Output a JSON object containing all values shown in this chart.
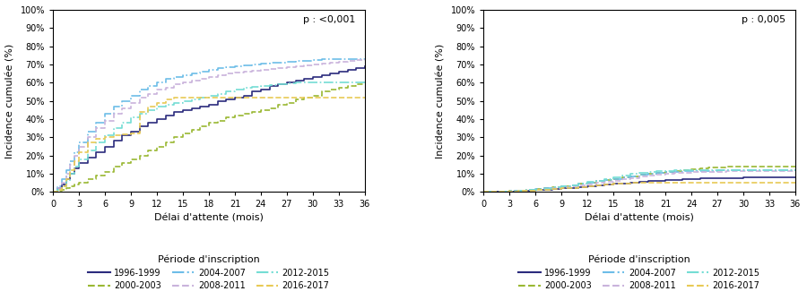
{
  "left_title_text": "p : <0,001",
  "right_title_text": "p : 0,005",
  "xlabel": "Délai d'attente (mois)",
  "ylabel": "Incidence cumulée (%)",
  "legend_title": "Période d'inscription",
  "yticks": [
    0,
    10,
    20,
    30,
    40,
    50,
    60,
    70,
    80,
    90,
    100
  ],
  "xticks": [
    0,
    3,
    6,
    9,
    12,
    15,
    18,
    21,
    24,
    27,
    30,
    33,
    36
  ],
  "series": [
    {
      "label": "1996-1999",
      "color": "#2b2b7d",
      "linestyle": "solid",
      "linewidth": 1.2,
      "left_x": [
        0,
        0.5,
        1,
        1.5,
        2,
        2.5,
        3,
        4,
        5,
        6,
        7,
        8,
        9,
        10,
        11,
        12,
        13,
        14,
        15,
        16,
        17,
        18,
        19,
        20,
        21,
        22,
        23,
        24,
        25,
        26,
        27,
        28,
        29,
        30,
        31,
        32,
        33,
        34,
        35,
        36
      ],
      "left_y": [
        0,
        2,
        4,
        7,
        10,
        13,
        16,
        19,
        22,
        25,
        28,
        31,
        33,
        36,
        38,
        40,
        42,
        44,
        45,
        46,
        47,
        48,
        50,
        51,
        52,
        53,
        55,
        56,
        58,
        59,
        60,
        61,
        62,
        63,
        64,
        65,
        66,
        67,
        68,
        69
      ],
      "right_x": [
        0,
        1,
        2,
        3,
        4,
        5,
        6,
        7,
        8,
        9,
        10,
        11,
        12,
        13,
        14,
        15,
        16,
        17,
        18,
        19,
        20,
        21,
        22,
        23,
        24,
        25,
        26,
        27,
        28,
        29,
        30,
        31,
        32,
        33,
        34,
        35,
        36
      ],
      "right_y": [
        0,
        0.1,
        0.2,
        0.3,
        0.5,
        0.7,
        1.0,
        1.3,
        1.6,
        2.0,
        2.4,
        2.8,
        3.2,
        3.6,
        4.0,
        4.4,
        4.8,
        5.2,
        5.6,
        6.0,
        6.3,
        6.6,
        6.8,
        7.0,
        7.2,
        7.4,
        7.5,
        7.6,
        7.7,
        7.8,
        7.9,
        8.0,
        8.0,
        8.0,
        8.0,
        8.0,
        8.0
      ]
    },
    {
      "label": "2000-2003",
      "color": "#9ab832",
      "linestyle": "dashed",
      "linewidth": 1.2,
      "left_x": [
        0,
        0.5,
        1,
        1.5,
        2,
        2.5,
        3,
        4,
        5,
        6,
        7,
        8,
        9,
        10,
        11,
        12,
        13,
        14,
        15,
        16,
        17,
        18,
        19,
        20,
        21,
        22,
        23,
        24,
        25,
        26,
        27,
        28,
        29,
        30,
        31,
        32,
        33,
        34,
        35,
        36
      ],
      "left_y": [
        0,
        0.5,
        1,
        2,
        3,
        4,
        5,
        7,
        9,
        11,
        14,
        16,
        18,
        20,
        23,
        25,
        27,
        30,
        32,
        34,
        36,
        38,
        39,
        41,
        42,
        43,
        44,
        45,
        46,
        48,
        49,
        51,
        52,
        53,
        55,
        56,
        57,
        58,
        59,
        59
      ],
      "right_x": [
        0,
        1,
        2,
        3,
        4,
        5,
        6,
        7,
        8,
        9,
        10,
        11,
        12,
        13,
        14,
        15,
        16,
        17,
        18,
        19,
        20,
        21,
        22,
        23,
        24,
        25,
        26,
        27,
        28,
        29,
        30,
        31,
        32,
        33,
        34,
        35,
        36
      ],
      "right_y": [
        0,
        0.1,
        0.3,
        0.5,
        0.8,
        1.2,
        1.6,
        2.1,
        2.6,
        3.2,
        3.8,
        4.5,
        5.2,
        5.9,
        6.6,
        7.3,
        8.0,
        8.7,
        9.4,
        10.0,
        10.5,
        11.0,
        11.5,
        12.0,
        12.5,
        13.0,
        13.3,
        13.6,
        13.8,
        14.0,
        14.0,
        14.0,
        14.0,
        14.0,
        14.0,
        14.0,
        14.0
      ]
    },
    {
      "label": "2004-2007",
      "color": "#6dbde8",
      "linestyle": "dashdot",
      "linewidth": 1.2,
      "left_x": [
        0,
        0.5,
        1,
        1.5,
        2,
        2.5,
        3,
        4,
        5,
        6,
        7,
        8,
        9,
        10,
        11,
        12,
        13,
        14,
        15,
        16,
        17,
        18,
        19,
        20,
        21,
        22,
        23,
        24,
        25,
        26,
        27,
        28,
        29,
        30,
        31,
        32,
        33,
        34,
        35,
        36
      ],
      "left_y": [
        0,
        3,
        7,
        12,
        17,
        22,
        27,
        33,
        38,
        43,
        47,
        50,
        53,
        56,
        58,
        60,
        62,
        63,
        64,
        65,
        66,
        67,
        68,
        68.5,
        69,
        69.5,
        70,
        70.5,
        71,
        71,
        71.5,
        72,
        72,
        72.5,
        73,
        73,
        73,
        73,
        73,
        73
      ],
      "right_x": [
        0,
        1,
        2,
        3,
        4,
        5,
        6,
        7,
        8,
        9,
        10,
        11,
        12,
        13,
        14,
        15,
        16,
        17,
        18,
        19,
        20,
        21,
        22,
        23,
        24,
        25,
        26,
        27,
        28,
        29,
        30,
        31,
        32,
        33,
        34,
        35,
        36
      ],
      "right_y": [
        0,
        0.1,
        0.3,
        0.5,
        0.8,
        1.2,
        1.6,
        2.1,
        2.6,
        3.2,
        3.8,
        4.5,
        5.2,
        5.9,
        6.6,
        7.3,
        8.0,
        8.7,
        9.4,
        10.0,
        10.5,
        11.0,
        11.2,
        11.4,
        11.5,
        11.6,
        11.7,
        11.8,
        11.9,
        12.0,
        12.0,
        12.0,
        12.0,
        12.0,
        12.0,
        12.0,
        12.0
      ]
    },
    {
      "label": "2008-2011",
      "color": "#c9b3dc",
      "linestyle": "dashed",
      "linewidth": 1.2,
      "left_x": [
        0,
        0.5,
        1,
        1.5,
        2,
        2.5,
        3,
        4,
        5,
        6,
        7,
        8,
        9,
        10,
        11,
        12,
        13,
        14,
        15,
        16,
        17,
        18,
        19,
        20,
        21,
        22,
        23,
        24,
        25,
        26,
        27,
        28,
        29,
        30,
        31,
        32,
        33,
        34,
        35,
        36
      ],
      "left_y": [
        0,
        2,
        5,
        10,
        15,
        20,
        25,
        30,
        35,
        39,
        43,
        46,
        49,
        52,
        54,
        56,
        57,
        59,
        60,
        61,
        62,
        63,
        64,
        65,
        65.5,
        66,
        66.5,
        67,
        67.5,
        68,
        68.5,
        69,
        69.5,
        70,
        70.5,
        71,
        71.5,
        72,
        72.5,
        73
      ],
      "right_x": [
        0,
        1,
        2,
        3,
        4,
        5,
        6,
        7,
        8,
        9,
        10,
        11,
        12,
        13,
        14,
        15,
        16,
        17,
        18,
        19,
        20,
        21,
        22,
        23,
        24,
        25,
        26,
        27,
        28,
        29,
        30,
        31,
        32,
        33,
        34,
        35,
        36
      ],
      "right_y": [
        0,
        0.1,
        0.2,
        0.4,
        0.6,
        0.9,
        1.2,
        1.6,
        2.0,
        2.5,
        3.0,
        3.6,
        4.2,
        4.9,
        5.6,
        6.3,
        7.0,
        7.7,
        8.4,
        9.0,
        9.5,
        10.0,
        10.3,
        10.6,
        10.8,
        11.0,
        11.1,
        11.2,
        11.3,
        11.4,
        11.5,
        11.5,
        11.5,
        11.5,
        11.5,
        11.5,
        11.5
      ]
    },
    {
      "label": "2012-2015",
      "color": "#74ddd4",
      "linestyle": "dashdot",
      "linewidth": 1.2,
      "left_x": [
        0,
        0.5,
        1,
        1.5,
        2,
        2.5,
        3,
        4,
        5,
        6,
        7,
        8,
        9,
        10,
        11,
        12,
        13,
        14,
        15,
        16,
        17,
        18,
        19,
        20,
        21,
        22,
        23,
        24,
        25,
        26,
        27,
        28,
        29,
        30,
        31,
        32,
        33,
        34,
        35,
        36
      ],
      "left_y": [
        0,
        1,
        3,
        6,
        10,
        14,
        18,
        23,
        27,
        31,
        35,
        38,
        41,
        43,
        45,
        47,
        48,
        49,
        50,
        51,
        52,
        53,
        54,
        55,
        56,
        57,
        57.5,
        58,
        58.5,
        59,
        59.5,
        60,
        60,
        60,
        60,
        60,
        60,
        60,
        60,
        60
      ],
      "right_x": [
        0,
        1,
        2,
        3,
        4,
        5,
        6,
        7,
        8,
        9,
        10,
        11,
        12,
        13,
        14,
        15,
        16,
        17,
        18,
        19,
        20,
        21,
        22,
        23,
        24,
        25,
        26,
        27,
        28,
        29,
        30,
        31,
        32,
        33,
        34,
        35,
        36
      ],
      "right_y": [
        0,
        0.1,
        0.2,
        0.4,
        0.7,
        1.0,
        1.4,
        1.9,
        2.5,
        3.1,
        3.8,
        4.6,
        5.4,
        6.3,
        7.2,
        8.1,
        9.0,
        9.8,
        10.5,
        11.0,
        11.4,
        11.7,
        12.0,
        12.0,
        12.0,
        12.0,
        12.0,
        12.0,
        12.0,
        12.0,
        12.0,
        12.0,
        12.0,
        12.0,
        12.0,
        12.0,
        12.0
      ]
    },
    {
      "label": "2016-2017",
      "color": "#e8ca55",
      "linestyle": "dashed",
      "linewidth": 1.2,
      "left_x": [
        0,
        0.5,
        1,
        1.5,
        2,
        2.5,
        3,
        4,
        5,
        6,
        7,
        8,
        9,
        10,
        11,
        12,
        13,
        14,
        15,
        16,
        17,
        18,
        19,
        20,
        21,
        22,
        23,
        24,
        25,
        26,
        27,
        28,
        29,
        30,
        31,
        32,
        33,
        34,
        35,
        36
      ],
      "left_y": [
        0,
        1,
        3,
        7,
        12,
        17,
        22,
        27,
        29,
        30,
        31,
        31.5,
        32,
        44,
        47,
        49,
        51,
        52,
        52,
        52,
        52,
        52,
        52,
        52,
        52,
        52,
        52,
        52,
        52,
        52,
        52,
        52,
        52,
        52,
        52,
        52,
        52,
        52,
        52,
        52
      ],
      "right_x": [
        0,
        1,
        2,
        3,
        4,
        5,
        6,
        7,
        8,
        9,
        10,
        11,
        12,
        13,
        14,
        15,
        16,
        17,
        18,
        19,
        20,
        21,
        22,
        23,
        24,
        25,
        26,
        27,
        28,
        29,
        30,
        31,
        32,
        33,
        34,
        35,
        36
      ],
      "right_y": [
        0,
        0.1,
        0.2,
        0.3,
        0.5,
        0.7,
        1.0,
        1.3,
        1.6,
        2.0,
        2.4,
        2.8,
        3.2,
        3.6,
        4.0,
        4.4,
        4.8,
        5.0,
        5.0,
        5.0,
        5.0,
        5.0,
        5.0,
        5.0,
        5.0,
        5.0,
        5.0,
        5.0,
        5.0,
        5.0,
        5.0,
        5.0,
        5.0,
        5.0,
        5.0,
        5.0,
        5.0
      ]
    }
  ]
}
